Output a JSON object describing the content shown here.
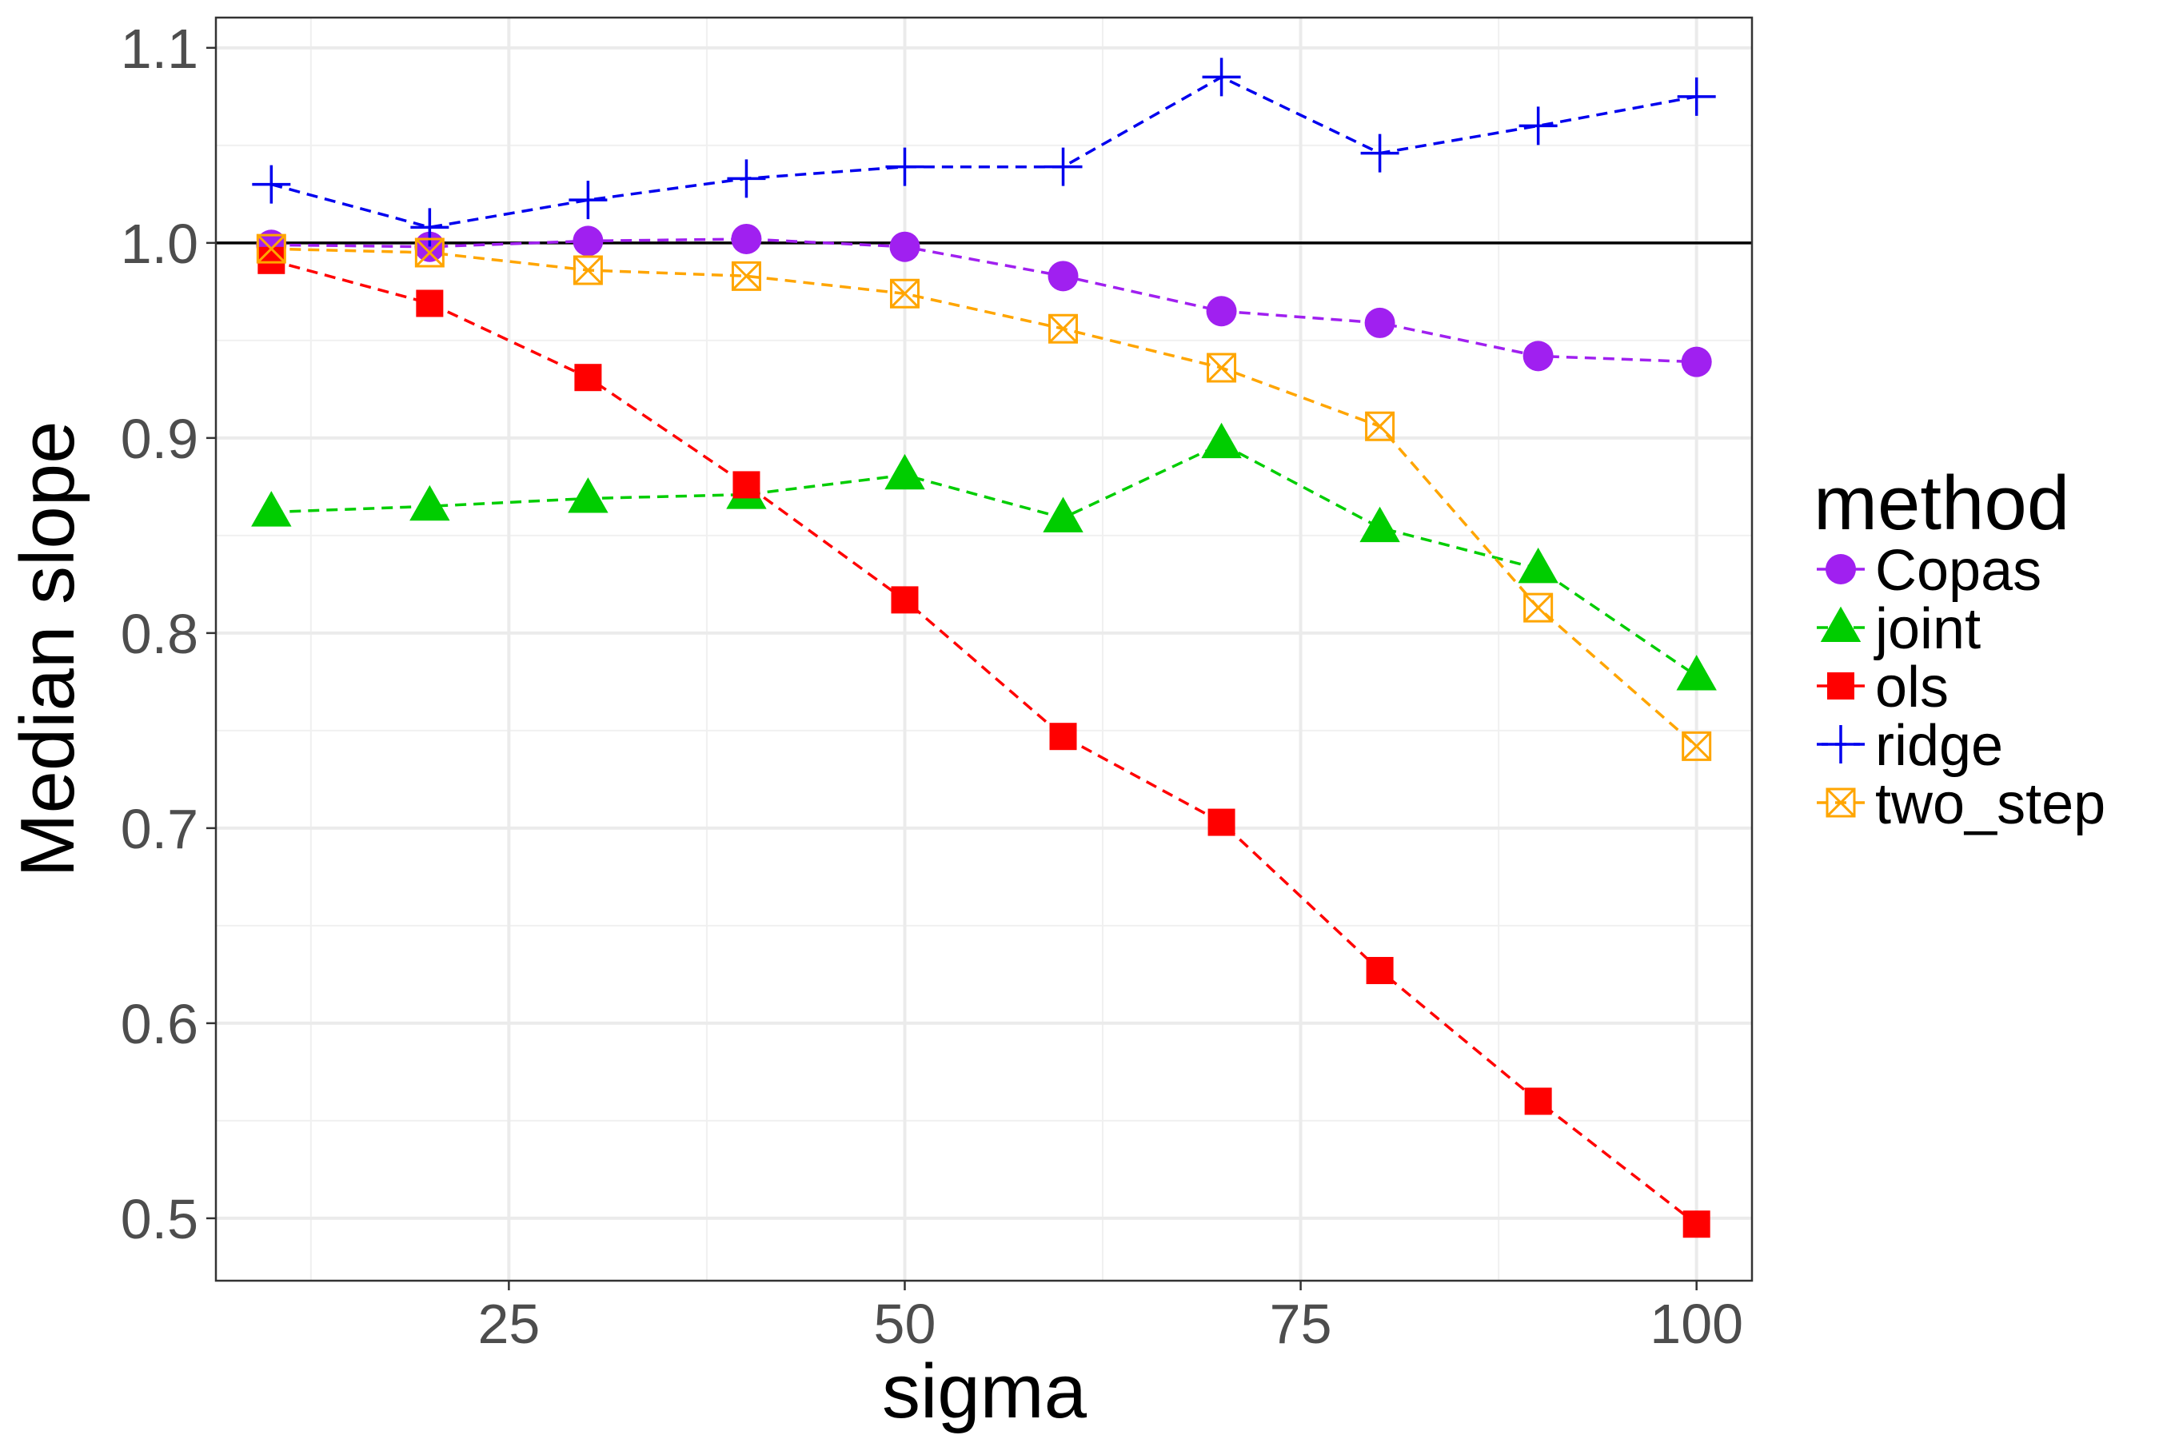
{
  "chart_data": {
    "type": "line",
    "title": "",
    "xlabel": "sigma",
    "ylabel": "Median slope",
    "xlim": [
      6.5,
      103.5
    ],
    "ylim": [
      0.468,
      1.1155
    ],
    "x_ticks": [
      25,
      50,
      75,
      100
    ],
    "x_tick_labels": [
      "25",
      "50",
      "75",
      "100"
    ],
    "y_ticks": [
      0.5,
      0.6,
      0.7,
      0.8,
      0.9,
      1.0,
      1.1
    ],
    "y_tick_labels": [
      "0.5",
      "0.6",
      "0.7",
      "0.8",
      "0.9",
      "1.0",
      "1.1"
    ],
    "grid": true,
    "reference_line": 1.0,
    "x": [
      10,
      20,
      30,
      40,
      50,
      60,
      70,
      80,
      90,
      100
    ],
    "legend": {
      "title": "method",
      "position": "right"
    },
    "series": [
      {
        "name": "Copas",
        "color": "#a020f0",
        "marker": "circle",
        "values": [
          0.999,
          0.998,
          1.001,
          1.002,
          0.998,
          0.983,
          0.965,
          0.959,
          0.942,
          0.939
        ]
      },
      {
        "name": "joint",
        "color": "#00cd00",
        "marker": "triangle",
        "values": [
          0.862,
          0.865,
          0.869,
          0.871,
          0.881,
          0.859,
          0.897,
          0.854,
          0.833,
          0.778
        ]
      },
      {
        "name": "ols",
        "color": "#ff0000",
        "marker": "square",
        "values": [
          0.991,
          0.969,
          0.931,
          0.876,
          0.817,
          0.747,
          0.703,
          0.627,
          0.56,
          0.497
        ]
      },
      {
        "name": "ridge",
        "color": "#0000ee",
        "marker": "plus",
        "values": [
          1.03,
          1.008,
          1.022,
          1.033,
          1.039,
          1.039,
          1.085,
          1.046,
          1.06,
          1.075
        ]
      },
      {
        "name": "two_step",
        "color": "#ffa500",
        "marker": "boxcross",
        "values": [
          0.997,
          0.995,
          0.986,
          0.983,
          0.974,
          0.956,
          0.936,
          0.906,
          0.813,
          0.742
        ]
      }
    ]
  }
}
